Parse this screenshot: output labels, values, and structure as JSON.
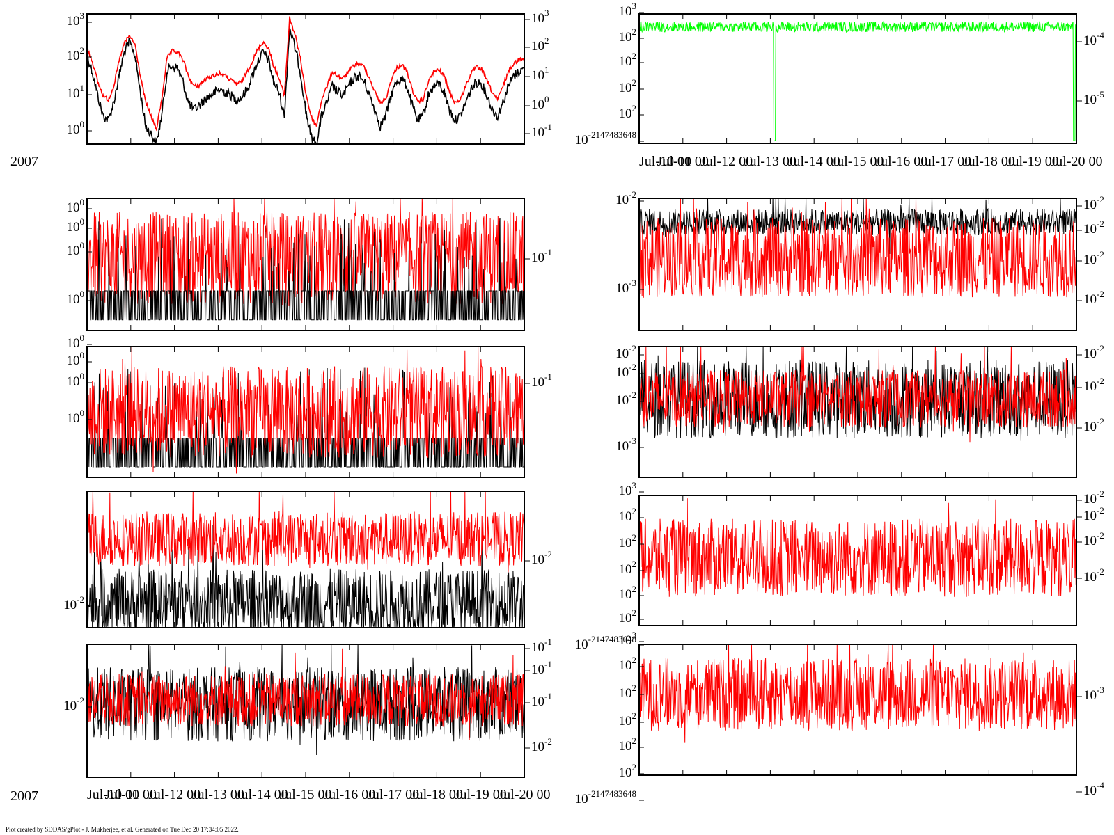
{
  "footer": "Plot created by SDDAS/gPlot - J. Mukherjee, et al.  Generated on Tue Dec 20 17:34:05 2022.",
  "year_label": "2007",
  "x_axis": {
    "ticks": [
      "Jul-10 00",
      "Jul-11 00",
      "Jul-12 00",
      "Jul-13 00",
      "Jul-14 00",
      "Jul-15 00",
      "Jul-16 00",
      "Jul-17 00",
      "Jul-18 00",
      "Jul-19 00",
      "Jul-20 00"
    ]
  },
  "colors": {
    "black": "#000000",
    "red": "#ff0000",
    "green": "#00ff00"
  },
  "chart_data": [
    {
      "id": "L1",
      "type": "line",
      "scale": "log",
      "grid": false,
      "left_labels": [
        "10^3",
        "10^2",
        "10^1",
        "10^0"
      ],
      "right_labels": [
        "10^3",
        "10^2",
        "10^1",
        "10^0",
        "10^-1"
      ],
      "series": [
        {
          "color": "black",
          "pattern": "smooth",
          "values": [
            120,
            40,
            8,
            2,
            1.5,
            5,
            30,
            150,
            300,
            120,
            10,
            1,
            0.6,
            0.3,
            2,
            40,
            60,
            50,
            20,
            5,
            3,
            4,
            6,
            8,
            10,
            12,
            10,
            8,
            6,
            7,
            12,
            30,
            80,
            150,
            90,
            20,
            10,
            2,
            800,
            200,
            40,
            3,
            0.5,
            0.3,
            2,
            5,
            15,
            10,
            8,
            15,
            25,
            30,
            20,
            8,
            3,
            1,
            2,
            8,
            20,
            25,
            15,
            4,
            1.5,
            2,
            8,
            15,
            18,
            10,
            3,
            1.5,
            2,
            5,
            12,
            20,
            18,
            8,
            3,
            2,
            5,
            15,
            30,
            40,
            50
          ]
        },
        {
          "color": "red",
          "pattern": "smooth",
          "values": [
            200,
            80,
            20,
            8,
            6,
            15,
            80,
            280,
            450,
            250,
            30,
            5,
            2,
            0.8,
            6,
            100,
            160,
            150,
            90,
            30,
            15,
            16,
            22,
            28,
            32,
            35,
            30,
            22,
            18,
            20,
            40,
            80,
            180,
            300,
            200,
            60,
            25,
            8,
            1500,
            500,
            100,
            10,
            2,
            1,
            6,
            15,
            40,
            30,
            25,
            40,
            60,
            70,
            55,
            25,
            10,
            5,
            6,
            22,
            50,
            65,
            40,
            12,
            5,
            6,
            20,
            40,
            45,
            30,
            10,
            5,
            6,
            15,
            35,
            55,
            48,
            22,
            10,
            6,
            15,
            40,
            70,
            90,
            110
          ]
        }
      ]
    },
    {
      "id": "L2",
      "type": "line",
      "scale": "log",
      "grid": false,
      "left_labels": [
        "10^0",
        "10^0",
        "10^0",
        "10^0"
      ],
      "right_labels": [
        "10^-1"
      ],
      "series": [
        {
          "color": "red",
          "pattern": "noise"
        },
        {
          "color": "black",
          "pattern": "binary"
        }
      ]
    },
    {
      "id": "L3",
      "type": "line",
      "scale": "log",
      "grid": false,
      "left_labels": [
        "10^0",
        "10^0",
        "10^0",
        "10^0"
      ],
      "right_labels": [
        "10^-1"
      ],
      "series": [
        {
          "color": "black",
          "pattern": "binary"
        },
        {
          "color": "red",
          "pattern": "noise"
        }
      ]
    },
    {
      "id": "L4",
      "type": "line",
      "scale": "log",
      "grid": false,
      "left_labels": [
        "10^-2"
      ],
      "right_labels": [
        "10^-2"
      ],
      "series": [
        {
          "color": "black",
          "pattern": "dense"
        },
        {
          "color": "red",
          "pattern": "noise"
        }
      ]
    },
    {
      "id": "L5",
      "type": "line",
      "scale": "log",
      "grid": false,
      "left_labels": [
        "10^-2"
      ],
      "right_labels": [
        "10^-1",
        "10^-1",
        "10^-1",
        "10^-2"
      ],
      "series": [
        {
          "color": "black",
          "pattern": "noise"
        },
        {
          "color": "red",
          "pattern": "noise"
        }
      ]
    },
    {
      "id": "R1",
      "type": "line",
      "scale": "log",
      "grid": false,
      "left_labels": [
        "10^3",
        "10^2",
        "10^2",
        "10^2",
        "10^2",
        "10^-2147483648"
      ],
      "right_labels": [
        "10^-4",
        "10^-5"
      ],
      "series": [
        {
          "color": "green",
          "pattern": "flat"
        }
      ]
    },
    {
      "id": "R2",
      "type": "line",
      "scale": "log",
      "grid": false,
      "left_labels": [
        "10^-2",
        "10^-3"
      ],
      "right_labels": [
        "10^-2",
        "10^-2",
        "10^-2",
        "10^-2"
      ],
      "series": [
        {
          "color": "black",
          "pattern": "noise"
        },
        {
          "color": "red",
          "pattern": "noise"
        }
      ]
    },
    {
      "id": "R3",
      "type": "line",
      "scale": "log",
      "grid": false,
      "left_labels": [
        "10^-2",
        "10^-2",
        "10^-2",
        "10^-3"
      ],
      "right_labels": [
        "10^-2",
        "10^-2",
        "10^-2"
      ],
      "series": [
        {
          "color": "black",
          "pattern": "noise"
        },
        {
          "color": "red",
          "pattern": "noise"
        }
      ]
    },
    {
      "id": "R4",
      "type": "line",
      "scale": "log",
      "grid": false,
      "left_labels": [
        "10^3",
        "10^2",
        "10^2",
        "10^2",
        "10^2",
        "10^2",
        "10^-2147483648"
      ],
      "right_labels": [
        "10^-2",
        "10^-2",
        "10^-2",
        "10^-2"
      ],
      "series": [
        {
          "color": "red",
          "pattern": "noise"
        }
      ]
    },
    {
      "id": "R5",
      "type": "line",
      "scale": "log",
      "grid": false,
      "left_labels": [
        "10^3",
        "10^2",
        "10^2",
        "10^2",
        "10^2",
        "10^2",
        "10^-2147483648"
      ],
      "right_labels": [
        "10^-3",
        "10^-4"
      ],
      "series": [
        {
          "color": "red",
          "pattern": "noise"
        }
      ]
    }
  ]
}
